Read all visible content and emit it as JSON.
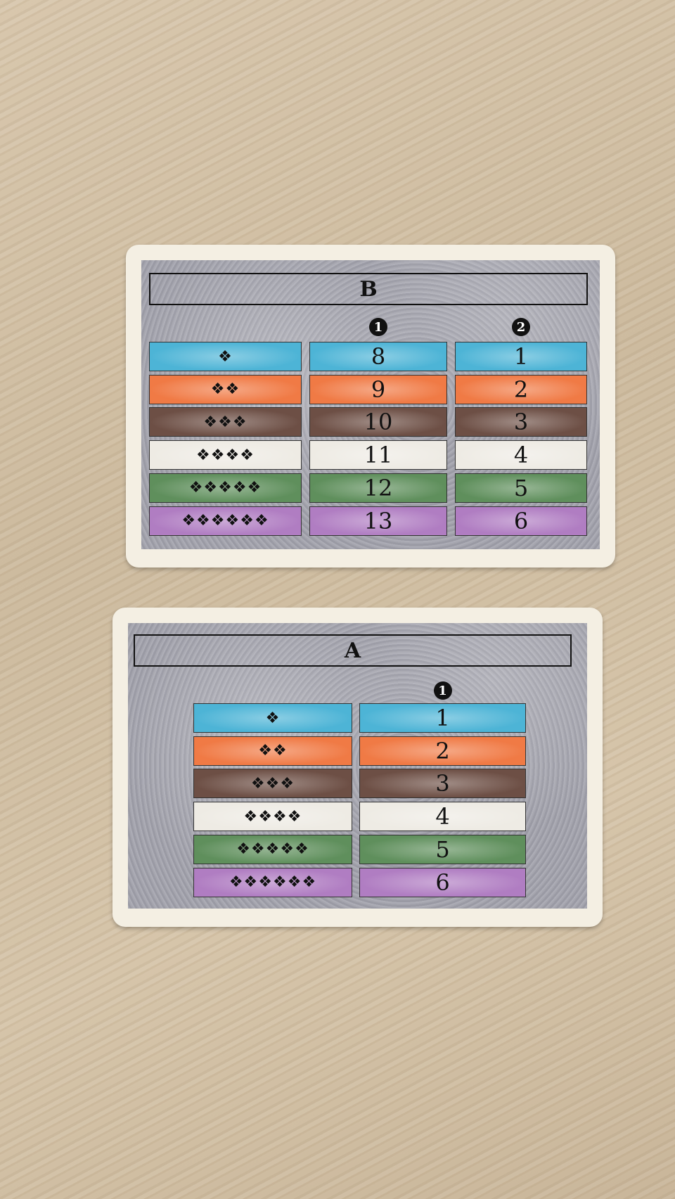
{
  "colors": {
    "blue": "#4db4d6",
    "orange": "#f07a45",
    "brown": "#6d4f45",
    "white": "#eeebe4",
    "green": "#5f8f5c",
    "purple": "#b07dc2"
  },
  "cards": [
    {
      "title": "B",
      "headers": [
        "1",
        "2"
      ],
      "rows": [
        {
          "color": "blue",
          "diamonds": "❖",
          "values": [
            "8",
            "1"
          ]
        },
        {
          "color": "orange",
          "diamonds": "❖❖",
          "values": [
            "9",
            "2"
          ]
        },
        {
          "color": "brown",
          "diamonds": "❖❖❖",
          "values": [
            "10",
            "3"
          ]
        },
        {
          "color": "white",
          "diamonds": "❖❖❖❖",
          "values": [
            "11",
            "4"
          ]
        },
        {
          "color": "green",
          "diamonds": "❖❖❖❖❖",
          "values": [
            "12",
            "5"
          ]
        },
        {
          "color": "purple",
          "diamonds": "❖❖❖❖❖❖",
          "values": [
            "13",
            "6"
          ]
        }
      ]
    },
    {
      "title": "A",
      "headers": [
        "1"
      ],
      "rows": [
        {
          "color": "blue",
          "diamonds": "❖",
          "values": [
            "1"
          ]
        },
        {
          "color": "orange",
          "diamonds": "❖❖",
          "values": [
            "2"
          ]
        },
        {
          "color": "brown",
          "diamonds": "❖❖❖",
          "values": [
            "3"
          ]
        },
        {
          "color": "white",
          "diamonds": "❖❖❖❖",
          "values": [
            "4"
          ]
        },
        {
          "color": "green",
          "diamonds": "❖❖❖❖❖",
          "values": [
            "5"
          ]
        },
        {
          "color": "purple",
          "diamonds": "❖❖❖❖❖❖",
          "values": [
            "6"
          ]
        }
      ]
    }
  ]
}
